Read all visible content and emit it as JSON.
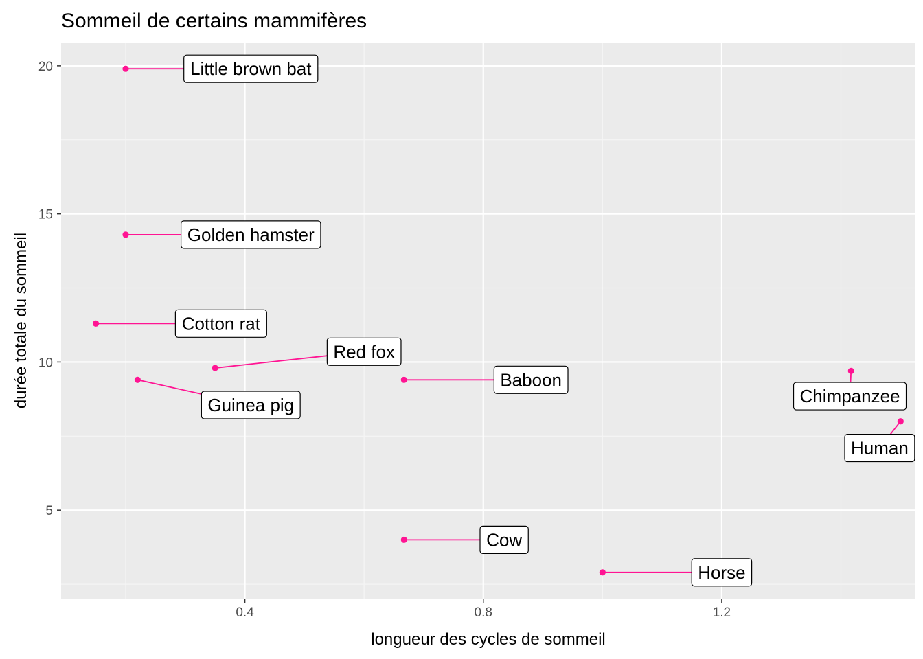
{
  "chart_data": {
    "type": "scatter",
    "title": "Sommeil de certains mammifères",
    "xlabel": "longueur des cycles de sommeil",
    "ylabel": "durée totale du sommeil",
    "xlim": [
      0.0917,
      1.525
    ],
    "ylim": [
      2.015,
      20.785
    ],
    "x_ticks": [
      0.4,
      0.8,
      1.2
    ],
    "x_tick_labels": [
      "0.4",
      "0.8",
      "1.2"
    ],
    "x_minor_ticks": [
      0.2,
      0.6,
      1.0,
      1.4
    ],
    "y_ticks": [
      5,
      10,
      15,
      20
    ],
    "y_tick_labels": [
      "5",
      "10",
      "15",
      "20"
    ],
    "y_minor_ticks": [
      2.5,
      7.5,
      12.5,
      17.5
    ],
    "grid": true,
    "legend": "none",
    "series": [
      {
        "point_color": "#ff1493",
        "points": [
          {
            "label": "Little brown bat",
            "x": 0.2,
            "y": 19.9,
            "label_x": 0.41,
            "label_y": 19.9
          },
          {
            "label": "Golden hamster",
            "x": 0.2,
            "y": 14.3,
            "label_x": 0.41,
            "label_y": 14.3
          },
          {
            "label": "Cotton rat",
            "x": 0.15,
            "y": 11.3,
            "label_x": 0.36,
            "label_y": 11.3
          },
          {
            "label": "Red fox",
            "x": 0.35,
            "y": 9.8,
            "label_x": 0.6,
            "label_y": 10.35
          },
          {
            "label": "Guinea pig",
            "x": 0.22,
            "y": 9.4,
            "label_x": 0.41,
            "label_y": 8.55
          },
          {
            "label": "Baboon",
            "x": 0.667,
            "y": 9.4,
            "label_x": 0.88,
            "label_y": 9.4
          },
          {
            "label": "Chimpanzee",
            "x": 1.417,
            "y": 9.7,
            "label_x": 1.415,
            "label_y": 8.85
          },
          {
            "label": "Human",
            "x": 1.5,
            "y": 8.0,
            "label_x": 1.465,
            "label_y": 7.1
          },
          {
            "label": "Cow",
            "x": 0.667,
            "y": 4.0,
            "label_x": 0.835,
            "label_y": 4.0
          },
          {
            "label": "Horse",
            "x": 1.0,
            "y": 2.9,
            "label_x": 1.2,
            "label_y": 2.9
          }
        ]
      }
    ]
  }
}
